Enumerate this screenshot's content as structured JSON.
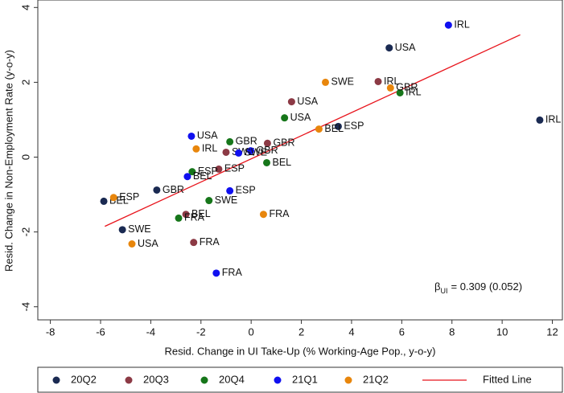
{
  "chart_data": {
    "type": "scatter",
    "x_label": "Resid. Change in UI Take-Up (% Working-Age Pop., y-o-y)",
    "y_label": "Resid. Change in Non-Employment Rate (y-o-y)",
    "xlim": [
      -8.5,
      12.4
    ],
    "ylim": [
      -4.35,
      4.2
    ],
    "xticks": [
      -8,
      -6,
      -4,
      -2,
      0,
      2,
      4,
      6,
      8,
      10,
      12
    ],
    "yticks": [
      -4,
      -2,
      0,
      2,
      4
    ],
    "series": [
      {
        "name": "20Q2",
        "color": "#1a2a52",
        "labels": [
          "IRL",
          "USA",
          "ESP",
          "GBR",
          "BEL",
          "SWE"
        ],
        "x": [
          11.5,
          5.5,
          3.47,
          -3.76,
          -5.87,
          -5.13
        ],
        "y": [
          0.99,
          2.92,
          0.82,
          -0.88,
          -1.18,
          -1.94
        ]
      },
      {
        "name": "20Q3",
        "color": "#8c3a45",
        "labels": [
          "IRL",
          "USA",
          "GBR",
          "SWE",
          "ESP",
          "BEL",
          "FRA"
        ],
        "x": [
          5.06,
          1.61,
          0.65,
          -1.0,
          -1.29,
          -2.6,
          -2.29
        ],
        "y": [
          2.02,
          1.48,
          0.37,
          0.13,
          -0.32,
          -1.53,
          -2.28
        ]
      },
      {
        "name": "20Q4",
        "color": "#16761a",
        "labels": [
          "IRL",
          "USA",
          "GBR",
          "BEL",
          "ESP",
          "SWE",
          "FRA"
        ],
        "x": [
          5.93,
          1.33,
          -0.85,
          0.62,
          -2.35,
          -1.68,
          -2.89
        ],
        "y": [
          1.72,
          1.05,
          0.41,
          -0.15,
          -0.39,
          -1.16,
          -1.63
        ]
      },
      {
        "name": "21Q1",
        "color": "#1010f0",
        "labels": [
          "IRL",
          "USA",
          "GBR",
          "SWE",
          "BEL",
          "ESP",
          "FRA"
        ],
        "x": [
          7.86,
          -2.38,
          -0.02,
          -0.5,
          -2.54,
          -0.85,
          -1.39
        ],
        "y": [
          3.53,
          0.56,
          0.17,
          0.11,
          -0.52,
          -0.9,
          -3.1
        ]
      },
      {
        "name": "21Q2",
        "color": "#e8860c",
        "labels": [
          "SWE",
          "GBR",
          "BEL",
          "IRL",
          "ESP",
          "FRA",
          "USA"
        ],
        "x": [
          2.96,
          5.55,
          2.7,
          -2.19,
          -5.48,
          0.49,
          -4.75
        ],
        "y": [
          2.0,
          1.85,
          0.75,
          0.22,
          -1.08,
          -1.53,
          -2.32
        ]
      }
    ],
    "fit": {
      "name": "Fitted Line",
      "color": "#e8141c",
      "x": [
        -5.83,
        10.72
      ],
      "y": [
        -1.85,
        3.27
      ]
    },
    "annotation": {
      "symbol": "β",
      "subscript": "UI",
      "text": "= 0.309 (0.052)"
    }
  }
}
